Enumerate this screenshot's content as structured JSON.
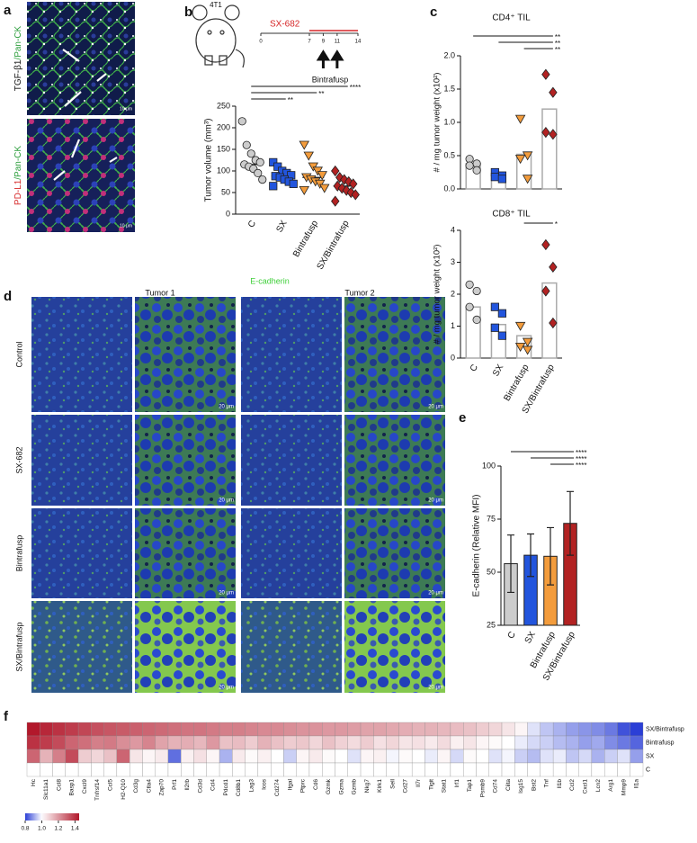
{
  "panel_labels": [
    "a",
    "b",
    "c",
    "d",
    "e",
    "f"
  ],
  "panel_a": {
    "rows": [
      {
        "stain": "TGF-β1",
        "counterstain": "/Pan-CK",
        "scale": "10 μm"
      },
      {
        "stain": "PD-L1",
        "counterstain": "/Pan-CK",
        "scale": "10 μm"
      }
    ]
  },
  "schematic": {
    "model": "4T1",
    "drug": "SX-682",
    "days": [
      0,
      7,
      9,
      11,
      14
    ],
    "treatment": "Bintrafusp"
  },
  "panel_d": {
    "stain": "E-cadherin",
    "columns": [
      "Tumor 1",
      "Tumor 2"
    ],
    "rows": [
      "Control",
      "SX-682",
      "Bintrafusp",
      "SX/Bintrafusp"
    ],
    "scale": "20 μm"
  },
  "chart_data": [
    {
      "type": "dotplot",
      "ylabel": "Tumor volume (mm³)",
      "categories": [
        "C",
        "SX",
        "Bintrafusp",
        "SX/Bintrafusp"
      ],
      "colors": [
        "#cccccc",
        "#2255dd",
        "#f39c3c",
        "#b22222"
      ],
      "markers": [
        "circle",
        "square",
        "triangle-down",
        "diamond"
      ],
      "points": [
        [
          215,
          160,
          140,
          125,
          120,
          115,
          110,
          105,
          95,
          80
        ],
        [
          120,
          110,
          100,
          95,
          90,
          88,
          85,
          80,
          75,
          70,
          65
        ],
        [
          160,
          135,
          110,
          100,
          90,
          85,
          80,
          75,
          70,
          60,
          55
        ],
        [
          100,
          85,
          80,
          75,
          70,
          65,
          60,
          55,
          50,
          45,
          30
        ]
      ],
      "ylim": [
        0,
        250
      ],
      "yticks": [
        0,
        50,
        100,
        150,
        200,
        250
      ],
      "comparisons": [
        {
          "from": "C",
          "to": "SX/Bintrafusp",
          "label": "****"
        },
        {
          "from": "C",
          "to": "Bintrafusp",
          "label": "**"
        },
        {
          "from": "C",
          "to": "SX",
          "label": "**"
        }
      ]
    },
    {
      "type": "dotbar",
      "ylabel": "# / mg tumor weight (x10²)",
      "categories": [
        "C",
        "SX",
        "Bintrafusp",
        "SX/Bintrafusp"
      ],
      "colors": [
        "#cccccc",
        "#2255dd",
        "#f39c3c",
        "#b22222"
      ],
      "markers": [
        "circle",
        "square",
        "triangle-down",
        "diamond"
      ],
      "panels": [
        {
          "title": "CD4⁺ TIL",
          "values": [
            0.38,
            0.2,
            0.52,
            1.2
          ],
          "points": [
            [
              0.45,
              0.38,
              0.35,
              0.28
            ],
            [
              0.25,
              0.2,
              0.18,
              0.15
            ],
            [
              1.05,
              0.5,
              0.45,
              0.15
            ],
            [
              1.72,
              1.45,
              0.85,
              0.82
            ]
          ],
          "ylim": [
            0,
            2
          ],
          "yticks": [
            {
              "value": 0,
              "label": "0.0"
            },
            0.5,
            {
              "value": 1,
              "label": "1.0"
            },
            1.5,
            {
              "value": 2,
              "label": "2.0"
            }
          ],
          "comparisons": [
            {
              "from": "C",
              "to": "SX/Bintrafusp",
              "label": "**"
            },
            {
              "from": "SX",
              "to": "SX/Bintrafusp",
              "label": "**"
            },
            {
              "from": "Bintrafusp",
              "to": "SX/Bintrafusp",
              "label": "**"
            }
          ]
        },
        {
          "title": "CD8⁺ TIL",
          "values": [
            1.6,
            1.05,
            0.7,
            2.35
          ],
          "points": [
            [
              2.3,
              2.1,
              1.6,
              1.2
            ],
            [
              1.6,
              1.4,
              0.95,
              0.7
            ],
            [
              1.0,
              0.5,
              0.35,
              0.25
            ],
            [
              3.55,
              2.85,
              2.1,
              1.1
            ]
          ],
          "ylim": [
            0,
            4
          ],
          "yticks": [
            0,
            1,
            2,
            3,
            4
          ],
          "comparisons": [
            {
              "from": "Bintrafusp",
              "to": "SX/Bintrafusp",
              "label": "*"
            }
          ]
        }
      ]
    },
    {
      "type": "bar",
      "ylabel": "E-cadherin (Relative MFI)",
      "categories": [
        "C",
        "SX",
        "Bintrafusp",
        "SX/Bintrafusp"
      ],
      "values": [
        54,
        58,
        57.5,
        73
      ],
      "errors": [
        13.5,
        10,
        13.5,
        15
      ],
      "colors": [
        "#cccccc",
        "#2255dd",
        "#f39c3c",
        "#b22222"
      ],
      "ylim": [
        25,
        100
      ],
      "yticks": [
        25,
        50,
        75,
        100
      ],
      "comparisons": [
        {
          "from": "C",
          "to": "SX/Bintrafusp",
          "label": "****"
        },
        {
          "from": "SX",
          "to": "SX/Bintrafusp",
          "label": "****"
        },
        {
          "from": "Bintrafusp",
          "to": "SX/Bintrafusp",
          "label": "****"
        }
      ]
    },
    {
      "type": "heatmap",
      "rows": [
        "SX/Bintrafusp",
        "Bintrafusp",
        "SX",
        "C"
      ],
      "columns": [
        "Hc",
        "Slc11a1",
        "Ccl8",
        "Basp1",
        "Cxcl9",
        "Tnfrsf14",
        "Ccl5",
        "H2-Q10",
        "Cd3g",
        "Ctla4",
        "Zap70",
        "Prf1",
        "Il2rb",
        "Cd3d",
        "Ccl4",
        "Pdcd1",
        "Cd8b1",
        "Lag3",
        "Icos",
        "Cd274",
        "Itgal",
        "Ptprc",
        "Cd6",
        "Gzmk",
        "Gzma",
        "Gzmb",
        "Nkg7",
        "Klrk1",
        "Sell",
        "Cd27",
        "Il7r",
        "Tigit",
        "Stat1",
        "Irf1",
        "Tap1",
        "Psmb9",
        "Cd74",
        "Ciita",
        "Isg15",
        "Bst2",
        "Tnf",
        "Il1b",
        "Ccl2",
        "Cxcl1",
        "Lcn2",
        "Arg1",
        "Mmp9",
        "Il1a"
      ],
      "values": [
        [
          1.45,
          1.42,
          1.4,
          1.38,
          1.36,
          1.34,
          1.33,
          1.32,
          1.31,
          1.3,
          1.29,
          1.28,
          1.27,
          1.27,
          1.26,
          1.25,
          1.25,
          1.24,
          1.23,
          1.23,
          1.22,
          1.21,
          1.21,
          1.2,
          1.2,
          1.19,
          1.18,
          1.18,
          1.17,
          1.16,
          1.15,
          1.15,
          1.14,
          1.13,
          1.12,
          1.1,
          1.08,
          1.05,
          1.02,
          0.97,
          0.94,
          0.92,
          0.9,
          0.89,
          0.88,
          0.86,
          0.82,
          0.8
        ],
        [
          1.4,
          1.38,
          1.35,
          1.3,
          1.28,
          1.25,
          1.26,
          1.22,
          1.2,
          1.24,
          1.18,
          1.15,
          1.16,
          1.14,
          1.2,
          1.12,
          1.13,
          1.1,
          1.15,
          1.12,
          1.1,
          1.11,
          1.08,
          1.12,
          1.09,
          1.07,
          1.1,
          1.06,
          1.08,
          1.05,
          1.06,
          1.04,
          1.07,
          1.03,
          1.05,
          1.02,
          1.01,
          1.0,
          0.98,
          0.96,
          0.95,
          0.93,
          0.92,
          0.9,
          0.91,
          0.88,
          0.86,
          0.84
        ],
        [
          1.3,
          1.15,
          1.25,
          1.35,
          1.1,
          1.08,
          1.12,
          1.3,
          1.05,
          1.02,
          1.04,
          0.85,
          1.03,
          1.06,
          1.02,
          0.92,
          1.04,
          1.01,
          1.03,
          1.0,
          0.95,
          1.02,
          1.04,
          1.01,
          1.0,
          0.97,
          1.02,
          1.03,
          0.99,
          1.01,
          1.0,
          0.98,
          1.02,
          0.96,
          1.01,
          1.0,
          0.97,
          0.99,
          0.95,
          0.93,
          0.97,
          0.98,
          0.94,
          0.96,
          0.92,
          0.95,
          0.97,
          0.9
        ],
        [
          1,
          1,
          1,
          1,
          1,
          1,
          1,
          1,
          1,
          1,
          1,
          1,
          1,
          1,
          1,
          1,
          1,
          1,
          1,
          1,
          1,
          1,
          1,
          1,
          1,
          1,
          1,
          1,
          1,
          1,
          1,
          1,
          1,
          1,
          1,
          1,
          1,
          1,
          1,
          1,
          1,
          1,
          1,
          1,
          1,
          1,
          1,
          1
        ]
      ],
      "zlim": [
        0.8,
        1.45
      ],
      "zmid": 1,
      "zticks": [
        0.8,
        {
          "value": 1,
          "label": "1.0"
        },
        1.2,
        1.4
      ],
      "colors": {
        "low": "#2b3fd6",
        "mid": "#ffffff",
        "high": "#b2182b"
      }
    }
  ]
}
